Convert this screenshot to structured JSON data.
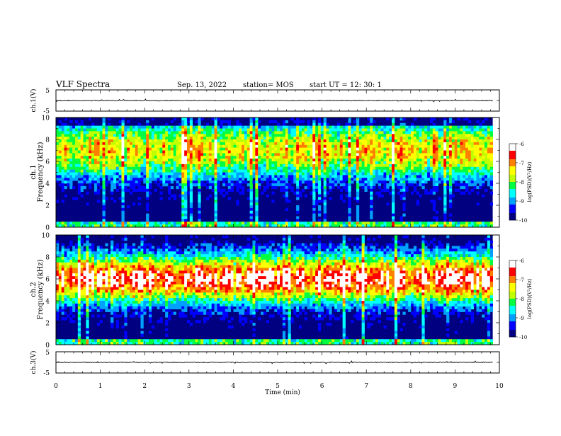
{
  "header": {
    "title": "VLF Spectra",
    "date": "Sep. 13, 2022",
    "station": "station= MOS",
    "start_ut": "start  UT =   12: 30: 1"
  },
  "chart_data": [
    {
      "type": "line",
      "panel": "ch1-waveform",
      "ylabel": "ch.1(V)",
      "yticks": [
        "5",
        "-5"
      ],
      "ylim": [
        -5,
        5
      ],
      "xlim": [
        0,
        10
      ],
      "trace_level": 0
    },
    {
      "type": "heatmap",
      "panel": "ch1-spectrogram",
      "ylabel_line1": "ch.1",
      "ylabel_line2": "Frequency (kHz)",
      "yticks": [
        "0",
        "2",
        "4",
        "6",
        "8",
        "10"
      ],
      "ylim": [
        0,
        10
      ],
      "xlim": [
        0,
        9.85
      ],
      "band_peak_khz": 7,
      "colorbar": {
        "label": "log(PSD)(V²/Hz)",
        "ticks": [
          "-6",
          "-7",
          "-8",
          "-9",
          "-10"
        ],
        "range": [
          -10,
          -6
        ]
      }
    },
    {
      "type": "heatmap",
      "panel": "ch2-spectrogram",
      "ylabel_line1": "ch.2",
      "ylabel_line2": "Frequency (kHz)",
      "yticks": [
        "0",
        "2",
        "4",
        "6",
        "8",
        "10"
      ],
      "ylim": [
        0,
        10
      ],
      "xlim": [
        0,
        9.85
      ],
      "band_peak_khz": 6,
      "colorbar": {
        "label": "log(PSD)(V²/Hz)",
        "ticks": [
          "-6",
          "-7",
          "-8",
          "-9",
          "-10"
        ],
        "range": [
          -10,
          -6
        ]
      }
    },
    {
      "type": "line",
      "panel": "ch3-waveform",
      "ylabel": "ch.3(V)",
      "yticks": [
        "5",
        "-5"
      ],
      "ylim": [
        -5,
        5
      ],
      "xlim": [
        0,
        10
      ],
      "trace_level": 0
    }
  ],
  "xaxis": {
    "label": "Time  (min)",
    "ticks": [
      "0",
      "1",
      "2",
      "3",
      "4",
      "5",
      "6",
      "7",
      "8",
      "9",
      "10"
    ],
    "range": [
      0,
      10
    ]
  },
  "colors": {
    "scale": [
      "#000080",
      "#0000ff",
      "#00a0ff",
      "#00ffff",
      "#00ff40",
      "#c0ff00",
      "#ffff00",
      "#ff8000",
      "#ff0000",
      "#ffffff"
    ]
  }
}
